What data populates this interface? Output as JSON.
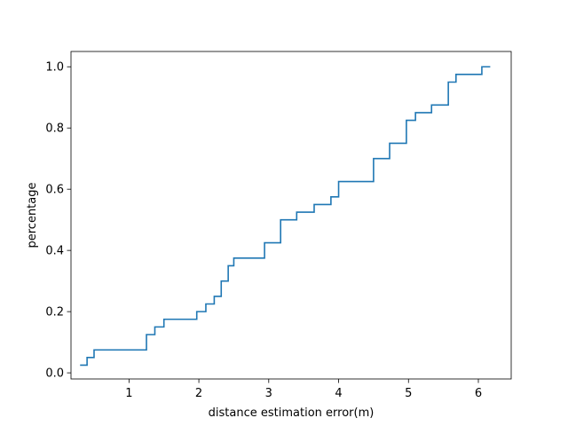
{
  "chart_data": {
    "type": "line",
    "drawstyle": "steps-post",
    "title": "",
    "xlabel": "distance estimation error(m)",
    "ylabel": "percentage",
    "xlim": [
      0.17,
      6.47
    ],
    "ylim": [
      -0.02,
      1.05
    ],
    "xticks": [
      1,
      2,
      3,
      4,
      5,
      6
    ],
    "xtick_labels": [
      "1",
      "2",
      "3",
      "4",
      "5",
      "6"
    ],
    "yticks": [
      0.0,
      0.2,
      0.4,
      0.6,
      0.8,
      1.0
    ],
    "ytick_labels": [
      "0.0",
      "0.2",
      "0.4",
      "0.6",
      "0.8",
      "1.0"
    ],
    "grid": false,
    "legend": "none",
    "series": [
      {
        "color": "#1f77b4",
        "x": [
          0.3,
          0.4,
          0.5,
          1.25,
          1.37,
          1.5,
          1.97,
          2.1,
          2.22,
          2.32,
          2.42,
          2.5,
          2.58,
          2.94,
          3.17,
          3.4,
          3.65,
          3.89,
          4.0,
          4.5,
          4.73,
          4.97,
          5.1,
          5.33,
          5.57,
          5.68,
          6.05,
          6.17
        ],
        "y": [
          0.025,
          0.05,
          0.075,
          0.125,
          0.15,
          0.175,
          0.2,
          0.225,
          0.25,
          0.3,
          0.35,
          0.375,
          0.375,
          0.425,
          0.5,
          0.525,
          0.55,
          0.575,
          0.625,
          0.7,
          0.75,
          0.825,
          0.85,
          0.875,
          0.95,
          0.975,
          1.0,
          1.0
        ]
      }
    ]
  }
}
